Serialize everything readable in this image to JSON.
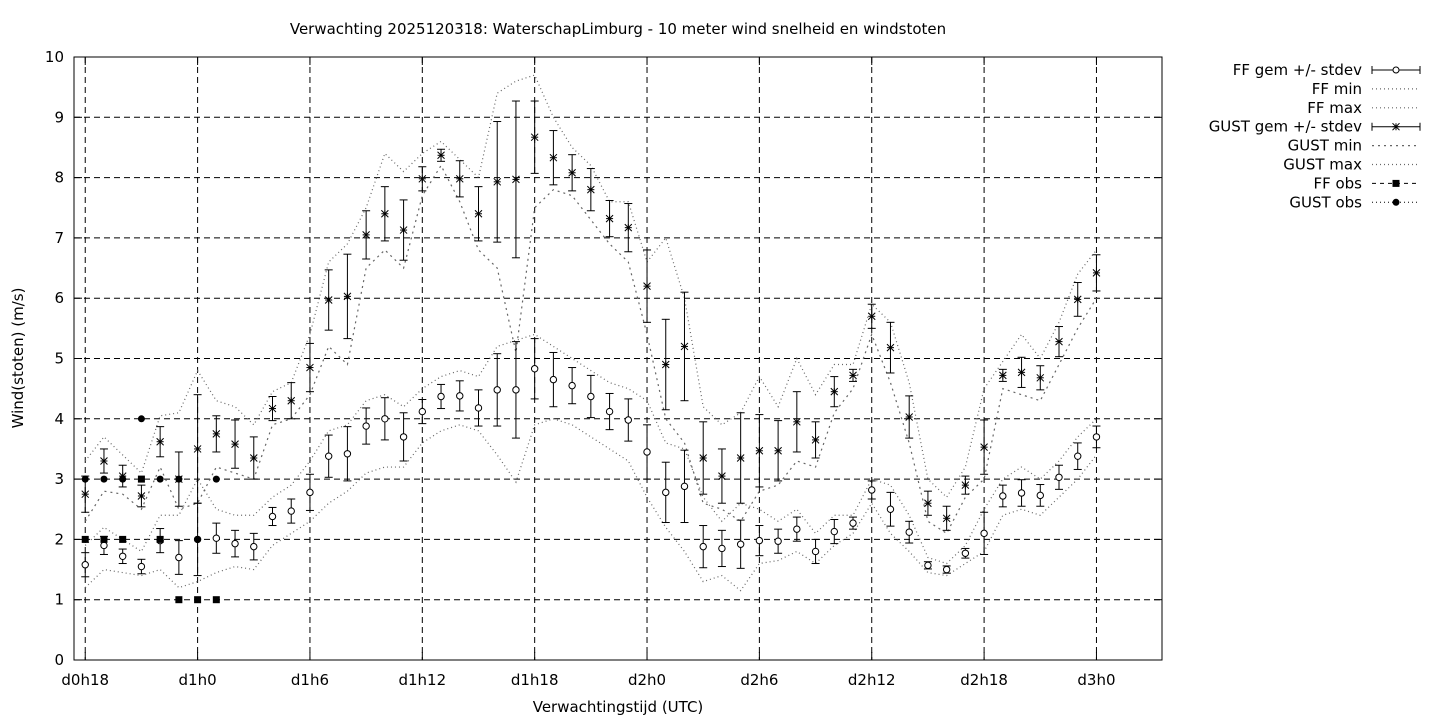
{
  "chart_data": {
    "type": "line",
    "title": "Verwachting 2025120318: WaterschapLimburg - 10 meter wind snelheid en windstoten",
    "xlabel": "Verwachtingstijd (UTC)",
    "ylabel": "Wind(stoten) (m/s)",
    "ylim": [
      0,
      10
    ],
    "xlim": [
      -0.6,
      57.5
    ],
    "grid": true,
    "legend_position": "outside-top-right",
    "yticks": [
      "0",
      "1",
      "2",
      "3",
      "4",
      "5",
      "6",
      "7",
      "8",
      "9",
      "10"
    ],
    "xticks": [
      {
        "x": 0,
        "label": "d0h18"
      },
      {
        "x": 6,
        "label": "d1h0"
      },
      {
        "x": 12,
        "label": "d1h6"
      },
      {
        "x": 18,
        "label": "d1h12"
      },
      {
        "x": 24,
        "label": "d1h18"
      },
      {
        "x": 30,
        "label": "d2h0"
      },
      {
        "x": 36,
        "label": "d2h6"
      },
      {
        "x": 42,
        "label": "d2h12"
      },
      {
        "x": 48,
        "label": "d2h18"
      },
      {
        "x": 54,
        "label": "d3h0"
      }
    ],
    "legend": [
      "FF gem +/- stdev",
      "FF min",
      "FF max",
      "GUST gem +/- stdev",
      "GUST min",
      "GUST max",
      "FF obs",
      "GUST obs"
    ],
    "ff_mean": {
      "x": [
        0,
        1,
        2,
        3,
        4,
        5,
        6,
        7,
        8,
        9,
        10,
        11,
        12,
        13,
        14,
        15,
        16,
        17,
        18,
        19,
        20,
        21,
        22,
        23,
        24,
        25,
        26,
        27,
        28,
        29,
        30,
        31,
        32,
        33,
        34,
        35,
        36,
        37,
        38,
        39,
        40,
        41,
        42,
        43,
        44,
        45,
        46,
        47,
        48,
        49,
        50,
        51,
        52,
        53,
        54
      ],
      "y": [
        1.58,
        1.9,
        1.72,
        1.55,
        1.98,
        1.7,
        2.0,
        2.02,
        1.93,
        1.88,
        2.38,
        2.47,
        2.78,
        3.38,
        3.42,
        3.88,
        4.0,
        3.7,
        4.12,
        4.37,
        4.38,
        4.18,
        4.48,
        4.48,
        4.83,
        4.65,
        4.55,
        4.37,
        4.12,
        3.98,
        3.45,
        2.78,
        2.88,
        1.88,
        1.85,
        1.92,
        1.98,
        1.97,
        2.17,
        1.8,
        2.13,
        2.27,
        2.82,
        2.5,
        2.12,
        1.57,
        1.5,
        1.77,
        2.1,
        2.72,
        2.77,
        2.73,
        3.03,
        3.38,
        3.7
      ],
      "err": [
        0.2,
        0.15,
        0.12,
        0.12,
        0.2,
        0.28,
        0.6,
        0.25,
        0.22,
        0.22,
        0.15,
        0.2,
        0.3,
        0.35,
        0.45,
        0.3,
        0.35,
        0.4,
        0.2,
        0.2,
        0.25,
        0.3,
        0.6,
        0.8,
        0.5,
        0.45,
        0.3,
        0.35,
        0.3,
        0.35,
        0.45,
        0.5,
        0.6,
        0.35,
        0.3,
        0.4,
        0.25,
        0.2,
        0.2,
        0.2,
        0.2,
        0.1,
        0.15,
        0.28,
        0.18,
        0.06,
        0.06,
        0.08,
        0.35,
        0.18,
        0.22,
        0.18,
        0.2,
        0.22,
        0.18
      ]
    },
    "ff_min": {
      "x": [
        0,
        1,
        2,
        3,
        4,
        5,
        6,
        7,
        8,
        9,
        10,
        11,
        12,
        13,
        14,
        15,
        16,
        17,
        18,
        19,
        20,
        21,
        22,
        23,
        24,
        25,
        26,
        27,
        28,
        29,
        30,
        31,
        32,
        33,
        34,
        35,
        36,
        37,
        38,
        39,
        40,
        41,
        42,
        43,
        44,
        45,
        46,
        47,
        48,
        49,
        50,
        51,
        52,
        53,
        54
      ],
      "y": [
        1.2,
        1.5,
        1.45,
        1.4,
        1.5,
        1.2,
        1.3,
        1.45,
        1.55,
        1.5,
        1.9,
        2.1,
        2.3,
        2.6,
        2.8,
        3.1,
        3.2,
        3.2,
        3.6,
        3.8,
        3.9,
        3.8,
        3.4,
        2.95,
        3.9,
        4.0,
        3.9,
        3.7,
        3.5,
        3.3,
        2.7,
        2.2,
        1.8,
        1.3,
        1.4,
        1.15,
        1.6,
        1.65,
        1.8,
        1.6,
        1.9,
        2.1,
        2.6,
        2.1,
        1.8,
        1.45,
        1.4,
        1.6,
        1.8,
        2.4,
        2.5,
        2.4,
        2.7,
        3.0,
        3.4
      ]
    },
    "ff_max": {
      "x": [
        0,
        1,
        2,
        3,
        4,
        5,
        6,
        7,
        8,
        9,
        10,
        11,
        12,
        13,
        14,
        15,
        16,
        17,
        18,
        19,
        20,
        21,
        22,
        23,
        24,
        25,
        26,
        27,
        28,
        29,
        30,
        31,
        32,
        33,
        34,
        35,
        36,
        37,
        38,
        39,
        40,
        41,
        42,
        43,
        44,
        45,
        46,
        47,
        48,
        49,
        50,
        51,
        52,
        53,
        54
      ],
      "y": [
        1.9,
        2.2,
        2.0,
        1.8,
        2.4,
        2.4,
        3.0,
        2.5,
        2.4,
        2.4,
        2.7,
        2.9,
        3.3,
        3.8,
        3.9,
        4.3,
        4.4,
        4.2,
        4.5,
        4.7,
        4.8,
        4.7,
        5.2,
        5.3,
        5.4,
        5.2,
        5.0,
        4.8,
        4.6,
        4.5,
        4.3,
        3.6,
        3.5,
        2.7,
        2.3,
        2.6,
        2.5,
        2.3,
        2.5,
        2.1,
        2.4,
        2.4,
        3.0,
        2.9,
        2.4,
        1.7,
        1.6,
        1.9,
        2.5,
        3.0,
        3.2,
        3.0,
        3.3,
        3.7,
        4.0
      ]
    },
    "gust_mean": {
      "x": [
        0,
        1,
        2,
        3,
        4,
        5,
        6,
        7,
        8,
        9,
        10,
        11,
        12,
        13,
        14,
        15,
        16,
        17,
        18,
        19,
        20,
        21,
        22,
        23,
        24,
        25,
        26,
        27,
        28,
        29,
        30,
        31,
        32,
        33,
        34,
        35,
        36,
        37,
        38,
        39,
        40,
        41,
        42,
        43,
        44,
        45,
        46,
        47,
        48,
        49,
        50,
        51,
        52,
        53,
        54
      ],
      "y": [
        2.75,
        3.3,
        3.05,
        2.72,
        3.62,
        3.0,
        3.5,
        3.75,
        3.58,
        3.35,
        4.17,
        4.3,
        4.85,
        5.97,
        6.03,
        7.05,
        7.4,
        7.13,
        7.98,
        8.37,
        7.98,
        7.4,
        7.93,
        7.97,
        8.67,
        8.33,
        8.08,
        7.8,
        7.32,
        7.17,
        6.2,
        4.9,
        5.2,
        3.35,
        3.05,
        3.35,
        3.47,
        3.47,
        3.95,
        3.65,
        4.45,
        4.72,
        5.7,
        5.18,
        4.03,
        2.6,
        2.35,
        2.9,
        3.53,
        4.72,
        4.77,
        4.68,
        5.28,
        5.98,
        6.42
      ],
      "err": [
        0.3,
        0.2,
        0.18,
        0.18,
        0.25,
        0.45,
        0.9,
        0.3,
        0.4,
        0.35,
        0.2,
        0.3,
        0.4,
        0.5,
        0.7,
        0.4,
        0.45,
        0.5,
        0.2,
        0.1,
        0.3,
        0.45,
        1.0,
        1.3,
        0.6,
        0.45,
        0.3,
        0.35,
        0.3,
        0.4,
        0.6,
        0.75,
        0.9,
        0.6,
        0.45,
        0.75,
        0.6,
        0.5,
        0.5,
        0.3,
        0.25,
        0.1,
        0.2,
        0.42,
        0.35,
        0.2,
        0.2,
        0.15,
        0.45,
        0.1,
        0.25,
        0.2,
        0.25,
        0.28,
        0.3
      ]
    },
    "gust_min": {
      "x": [
        0,
        1,
        2,
        3,
        4,
        5,
        6,
        7,
        8,
        9,
        10,
        11,
        12,
        13,
        14,
        15,
        16,
        17,
        18,
        19,
        20,
        21,
        22,
        23,
        24,
        25,
        26,
        27,
        28,
        29,
        30,
        31,
        32,
        33,
        34,
        35,
        36,
        37,
        38,
        39,
        40,
        41,
        42,
        43,
        44,
        45,
        46,
        47,
        48,
        49,
        50,
        51,
        52,
        53,
        54
      ],
      "y": [
        2.3,
        2.8,
        2.75,
        2.5,
        3.2,
        2.5,
        2.6,
        3.2,
        3.1,
        3.0,
        3.9,
        4.0,
        4.4,
        5.2,
        4.9,
        6.5,
        6.8,
        6.5,
        7.7,
        8.2,
        7.6,
        6.8,
        6.5,
        5.1,
        7.5,
        7.8,
        7.7,
        7.3,
        6.9,
        6.6,
        5.4,
        4.0,
        3.6,
        2.6,
        2.5,
        2.3,
        2.8,
        2.9,
        3.3,
        3.2,
        4.1,
        4.5,
        5.4,
        4.6,
        3.6,
        2.3,
        2.1,
        2.7,
        3.0,
        4.5,
        4.4,
        4.3,
        4.9,
        5.5,
        6.0
      ]
    },
    "gust_max": {
      "x": [
        0,
        1,
        2,
        3,
        4,
        5,
        6,
        7,
        8,
        9,
        10,
        11,
        12,
        13,
        14,
        15,
        16,
        17,
        18,
        19,
        20,
        21,
        22,
        23,
        24,
        25,
        26,
        27,
        28,
        29,
        30,
        31,
        32,
        33,
        34,
        35,
        36,
        37,
        38,
        39,
        40,
        41,
        42,
        43,
        44,
        45,
        46,
        47,
        48,
        49,
        50,
        51,
        52,
        53,
        54
      ],
      "y": [
        3.3,
        3.7,
        3.4,
        3.1,
        4.05,
        4.1,
        4.8,
        4.3,
        4.2,
        3.9,
        4.45,
        4.6,
        5.4,
        6.6,
        6.9,
        7.5,
        8.4,
        8.1,
        8.4,
        8.6,
        8.3,
        8.0,
        9.4,
        9.6,
        9.7,
        9.0,
        8.5,
        8.2,
        7.6,
        7.6,
        6.6,
        7.0,
        6.0,
        4.2,
        3.9,
        4.1,
        4.7,
        4.2,
        5.0,
        4.4,
        4.9,
        4.9,
        5.9,
        5.6,
        4.6,
        3.0,
        2.7,
        3.2,
        4.5,
        4.95,
        5.4,
        5.0,
        5.6,
        6.4,
        6.8
      ]
    },
    "ff_obs": {
      "x": [
        0,
        1,
        2,
        3,
        4,
        5,
        6,
        7
      ],
      "y": [
        2,
        2,
        2,
        3,
        2,
        1,
        1,
        1
      ]
    },
    "gust_obs": {
      "x": [
        0,
        1,
        2,
        3,
        4,
        5,
        6,
        7
      ],
      "y": [
        3,
        3,
        3,
        4,
        3,
        3,
        2,
        3
      ]
    }
  }
}
